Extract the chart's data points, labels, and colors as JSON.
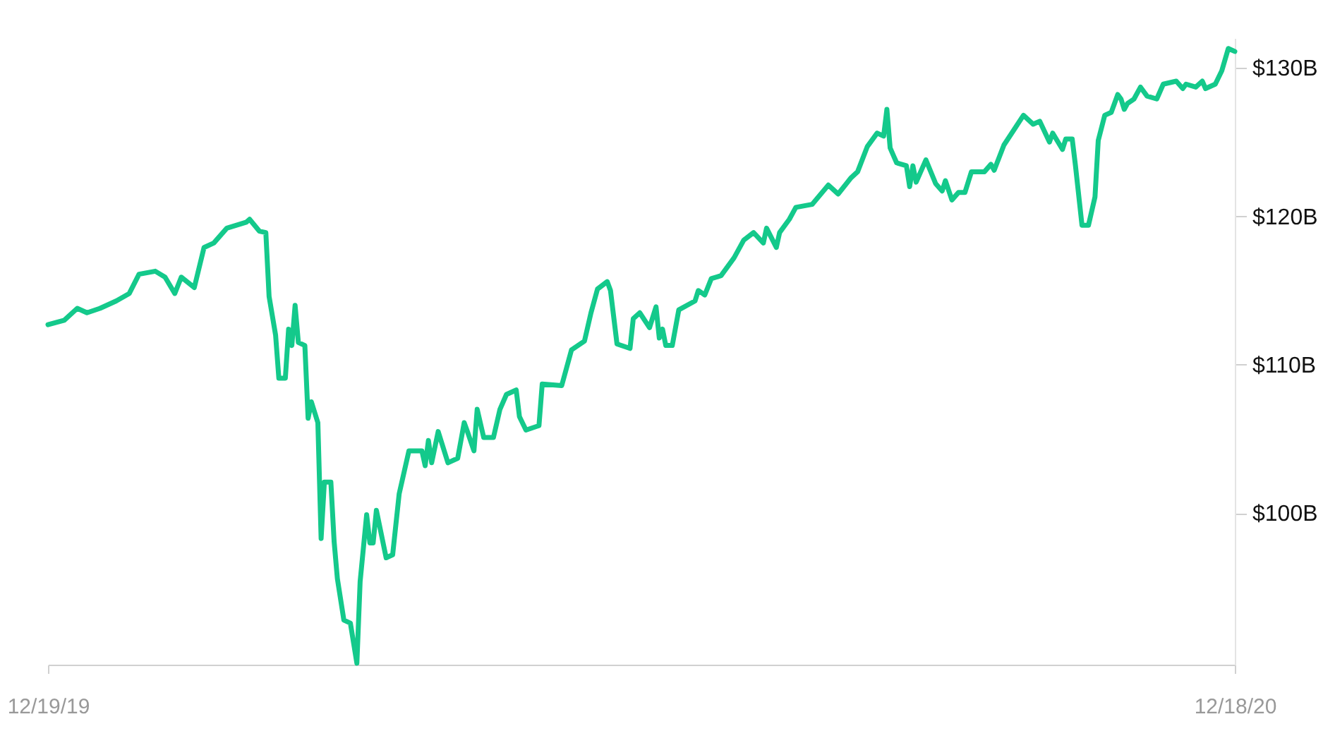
{
  "chart_data": {
    "type": "line",
    "x": [
      "2019-12-19",
      "2019-12-24",
      "2019-12-28",
      "2019-12-31",
      "2020-01-04",
      "2020-01-09",
      "2020-01-13",
      "2020-01-16",
      "2020-01-21",
      "2020-01-24",
      "2020-01-27",
      "2020-01-29",
      "2020-02-02",
      "2020-02-05",
      "2020-02-08",
      "2020-02-12",
      "2020-02-18",
      "2020-02-19",
      "2020-02-22",
      "2020-02-24",
      "2020-02-25",
      "2020-02-27",
      "2020-02-28",
      "2020-03-01",
      "2020-03-02",
      "2020-03-03",
      "2020-03-04",
      "2020-03-05",
      "2020-03-07",
      "2020-03-08",
      "2020-03-09",
      "2020-03-11",
      "2020-03-12",
      "2020-03-13",
      "2020-03-15",
      "2020-03-16",
      "2020-03-17",
      "2020-03-19",
      "2020-03-21",
      "2020-03-23",
      "2020-03-24",
      "2020-03-26",
      "2020-03-27",
      "2020-03-28",
      "2020-03-29",
      "2020-04-01",
      "2020-04-03",
      "2020-04-05",
      "2020-04-08",
      "2020-04-12",
      "2020-04-13",
      "2020-04-14",
      "2020-04-15",
      "2020-04-17",
      "2020-04-20",
      "2020-04-23",
      "2020-04-25",
      "2020-04-26",
      "2020-04-28",
      "2020-04-29",
      "2020-05-01",
      "2020-05-04",
      "2020-05-06",
      "2020-05-08",
      "2020-05-11",
      "2020-05-12",
      "2020-05-14",
      "2020-05-18",
      "2020-05-19",
      "2020-05-25",
      "2020-05-28",
      "2020-06-01",
      "2020-06-03",
      "2020-06-05",
      "2020-06-08",
      "2020-06-09",
      "2020-06-11",
      "2020-06-15",
      "2020-06-16",
      "2020-06-18",
      "2020-06-21",
      "2020-06-23",
      "2020-06-24",
      "2020-06-25",
      "2020-06-26",
      "2020-06-28",
      "2020-06-30",
      "2020-07-05",
      "2020-07-06",
      "2020-07-08",
      "2020-07-10",
      "2020-07-13",
      "2020-07-17",
      "2020-07-20",
      "2020-07-23",
      "2020-07-26",
      "2020-07-27",
      "2020-07-30",
      "2020-07-31",
      "2020-08-03",
      "2020-08-05",
      "2020-08-10",
      "2020-08-15",
      "2020-08-18",
      "2020-08-22",
      "2020-08-24",
      "2020-08-27",
      "2020-08-30",
      "2020-09-01",
      "2020-09-02",
      "2020-09-03",
      "2020-09-05",
      "2020-09-08",
      "2020-09-09",
      "2020-09-10",
      "2020-09-11",
      "2020-09-14",
      "2020-09-17",
      "2020-09-19",
      "2020-09-20",
      "2020-09-22",
      "2020-09-24",
      "2020-09-26",
      "2020-09-28",
      "2020-10-02",
      "2020-10-04",
      "2020-10-05",
      "2020-10-08",
      "2020-10-11",
      "2020-10-14",
      "2020-10-17",
      "2020-10-19",
      "2020-10-22",
      "2020-10-23",
      "2020-10-26",
      "2020-10-27",
      "2020-10-29",
      "2020-10-30",
      "2020-11-01",
      "2020-11-03",
      "2020-11-05",
      "2020-11-06",
      "2020-11-08",
      "2020-11-10",
      "2020-11-12",
      "2020-11-13",
      "2020-11-14",
      "2020-11-15",
      "2020-11-17",
      "2020-11-19",
      "2020-11-21",
      "2020-11-24",
      "2020-11-26",
      "2020-11-30",
      "2020-12-02",
      "2020-12-03",
      "2020-12-06",
      "2020-12-08",
      "2020-12-09",
      "2020-12-12",
      "2020-12-14",
      "2020-12-16",
      "2020-12-18"
    ],
    "series": [
      {
        "color": "#14c98b",
        "values": [
          112.7,
          113.0,
          113.8,
          113.5,
          113.8,
          114.3,
          114.8,
          116.1,
          116.3,
          115.9,
          114.8,
          115.9,
          115.2,
          117.9,
          118.2,
          119.2,
          119.6,
          119.8,
          119.0,
          118.9,
          114.6,
          112.0,
          109.1,
          109.1,
          112.4,
          111.3,
          114.0,
          111.5,
          111.3,
          106.4,
          107.5,
          106.1,
          98.3,
          102.1,
          102.1,
          98.1,
          95.6,
          92.8,
          92.6,
          89.9,
          95.4,
          99.9,
          98.0,
          98.0,
          100.2,
          97.0,
          97.2,
          101.3,
          104.2,
          104.2,
          103.2,
          104.9,
          103.4,
          105.5,
          103.4,
          103.7,
          106.1,
          105.5,
          104.2,
          107.0,
          105.1,
          105.1,
          107.0,
          108.0,
          108.3,
          106.5,
          105.6,
          105.9,
          108.7,
          108.6,
          111.0,
          111.6,
          113.5,
          115.1,
          115.6,
          115.0,
          111.4,
          111.1,
          113.1,
          113.5,
          112.5,
          113.9,
          111.8,
          112.4,
          111.3,
          111.3,
          113.7,
          114.3,
          115.0,
          114.7,
          115.8,
          116.0,
          117.2,
          118.4,
          118.9,
          118.2,
          119.2,
          117.9,
          118.9,
          119.8,
          120.6,
          120.8,
          122.1,
          121.5,
          122.6,
          123.0,
          124.7,
          125.6,
          125.4,
          127.2,
          124.6,
          123.6,
          123.4,
          122.0,
          123.4,
          122.3,
          123.8,
          122.2,
          121.7,
          122.4,
          121.1,
          121.6,
          121.6,
          123.0,
          123.0,
          123.5,
          123.1,
          124.8,
          125.8,
          126.8,
          126.2,
          126.4,
          125.0,
          125.6,
          124.5,
          125.2,
          125.2,
          123.4,
          119.4,
          119.4,
          121.3,
          125.1,
          126.8,
          127.0,
          128.2,
          127.9,
          127.2,
          127.6,
          127.9,
          128.7,
          128.1,
          127.9,
          128.9,
          129.1,
          128.6,
          128.9,
          128.7,
          129.1,
          128.6,
          128.9,
          129.8,
          131.3,
          131.1
        ]
      }
    ],
    "xlim": [
      "2019-12-19",
      "2020-12-18"
    ],
    "xticks": [
      {
        "value": "2019-12-19",
        "label": "12/19/19"
      },
      {
        "value": "2020-12-18",
        "label": "12/18/20"
      }
    ],
    "ylim": [
      89.8,
      132
    ],
    "yticks": [
      {
        "value": 100,
        "label": "$100B"
      },
      {
        "value": 110,
        "label": "$110B"
      },
      {
        "value": 120,
        "label": "$120B"
      },
      {
        "value": 130,
        "label": "$130B"
      }
    ]
  }
}
